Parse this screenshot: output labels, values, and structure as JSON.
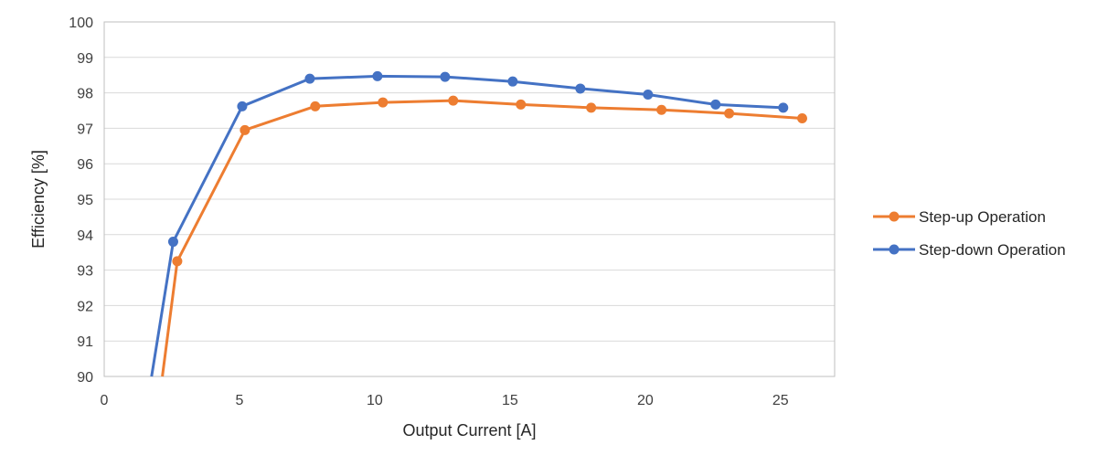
{
  "chart_data": {
    "type": "line",
    "title": "",
    "xlabel": "Output Current [A]",
    "ylabel": "Efficiency [%]",
    "xlim": [
      0,
      27
    ],
    "ylim": [
      90,
      100
    ],
    "x_ticks": [
      0,
      5,
      10,
      15,
      20,
      25
    ],
    "y_ticks": [
      90,
      91,
      92,
      93,
      94,
      95,
      96,
      97,
      98,
      99,
      100
    ],
    "grid": "horizontal",
    "legend_position": "right",
    "series": [
      {
        "name": "Step-up Operation",
        "color": "#ed7d31",
        "points": [
          {
            "x": 2.7,
            "y": 93.25
          },
          {
            "x": 5.2,
            "y": 96.95
          },
          {
            "x": 7.8,
            "y": 97.62
          },
          {
            "x": 10.3,
            "y": 97.73
          },
          {
            "x": 12.9,
            "y": 97.78
          },
          {
            "x": 15.4,
            "y": 97.67
          },
          {
            "x": 18.0,
            "y": 97.58
          },
          {
            "x": 20.6,
            "y": 97.52
          },
          {
            "x": 23.1,
            "y": 97.42
          },
          {
            "x": 25.8,
            "y": 97.28
          }
        ],
        "extends_below_axis_at_x": 2.15
      },
      {
        "name": "Step-down Operation",
        "color": "#4472c4",
        "points": [
          {
            "x": 2.55,
            "y": 93.8
          },
          {
            "x": 5.1,
            "y": 97.62
          },
          {
            "x": 7.6,
            "y": 98.4
          },
          {
            "x": 10.1,
            "y": 98.47
          },
          {
            "x": 12.6,
            "y": 98.45
          },
          {
            "x": 15.1,
            "y": 98.32
          },
          {
            "x": 17.6,
            "y": 98.12
          },
          {
            "x": 20.1,
            "y": 97.95
          },
          {
            "x": 22.6,
            "y": 97.67
          },
          {
            "x": 25.1,
            "y": 97.58
          }
        ],
        "extends_below_axis_at_x": 1.75
      }
    ]
  }
}
